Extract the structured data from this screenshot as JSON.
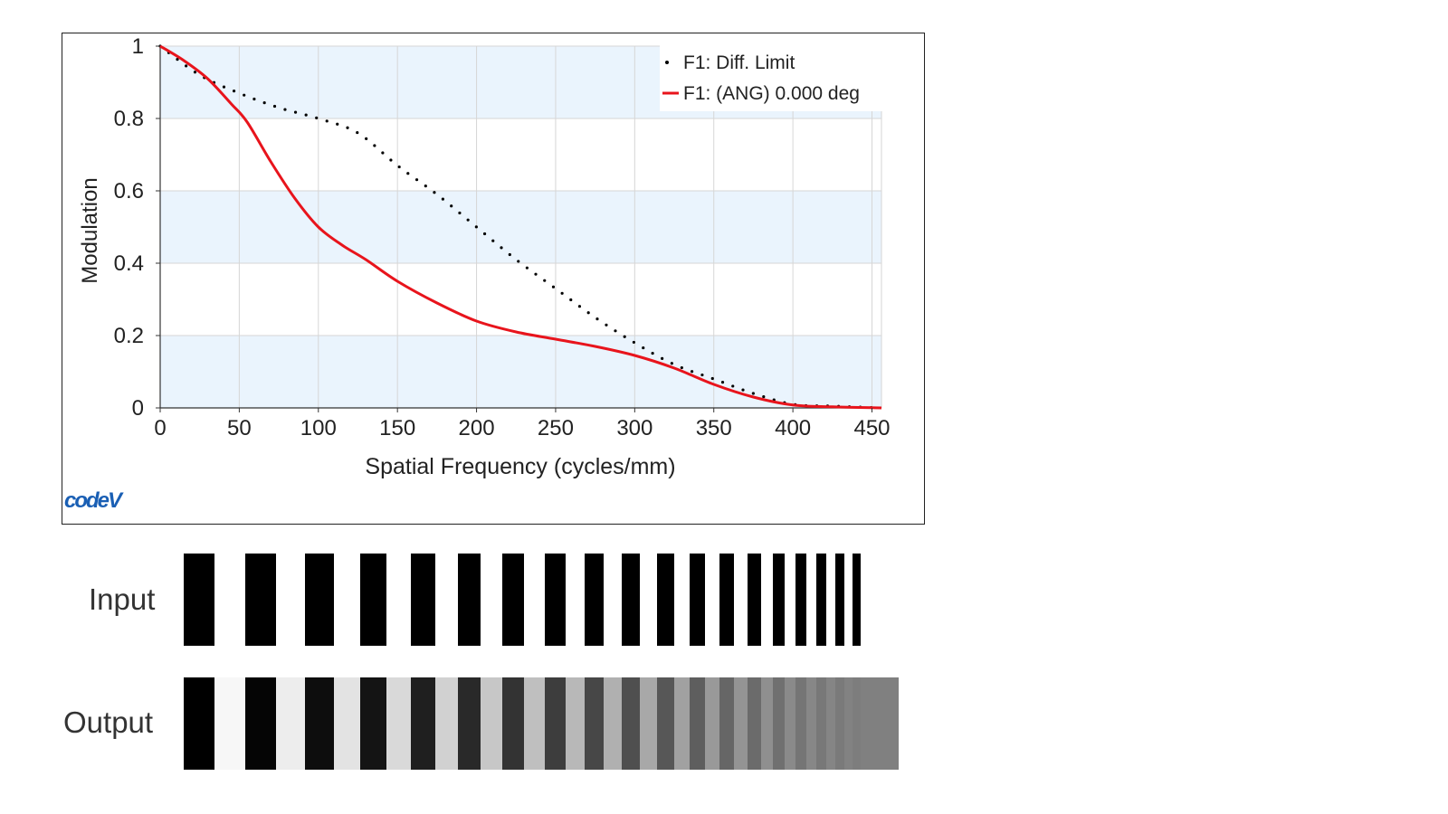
{
  "chart_data": {
    "type": "line",
    "title": "",
    "xlabel": "Spatial Frequency (cycles/mm)",
    "ylabel": "Modulation",
    "xlim": [
      0,
      456
    ],
    "ylim": [
      0,
      1
    ],
    "x_ticks": [
      0,
      50,
      100,
      150,
      200,
      250,
      300,
      350,
      400,
      450
    ],
    "y_ticks": [
      0,
      0.2,
      0.4,
      0.6,
      0.8,
      1
    ],
    "y_tick_labels": [
      "0",
      "0.2",
      "0.4",
      "0.6",
      "0.8",
      "1"
    ],
    "grid": true,
    "banded_background": true,
    "legend_position": "top-right",
    "series": [
      {
        "name": "F1: Diff. Limit",
        "style": "dotted",
        "color": "#000000",
        "x": [
          0,
          25,
          50,
          75,
          100,
          125,
          150,
          175,
          200,
          225,
          250,
          275,
          300,
          325,
          350,
          375,
          400,
          425,
          456
        ],
        "y": [
          1.0,
          0.92,
          0.87,
          0.83,
          0.8,
          0.76,
          0.67,
          0.59,
          0.5,
          0.41,
          0.33,
          0.25,
          0.18,
          0.12,
          0.08,
          0.04,
          0.01,
          0.005,
          0.0
        ]
      },
      {
        "name": "F1: (ANG) 0.000 deg",
        "style": "solid",
        "color": "#e8141c",
        "x": [
          0,
          15,
          30,
          45,
          55,
          70,
          85,
          100,
          115,
          130,
          150,
          175,
          200,
          225,
          250,
          275,
          300,
          325,
          350,
          375,
          400,
          425,
          456
        ],
        "y": [
          1.0,
          0.96,
          0.91,
          0.84,
          0.79,
          0.68,
          0.58,
          0.5,
          0.45,
          0.41,
          0.35,
          0.29,
          0.24,
          0.21,
          0.19,
          0.17,
          0.145,
          0.11,
          0.065,
          0.03,
          0.008,
          0.003,
          0.0
        ]
      }
    ]
  },
  "logo": {
    "text": "codeV",
    "color": "#1a5fb4"
  },
  "bars": {
    "input_label": "Input",
    "output_label": "Output",
    "widths": [
      34,
      34,
      32,
      29,
      27,
      25,
      24,
      23,
      21,
      20,
      19,
      17,
      16,
      15,
      13,
      12,
      11,
      10,
      9
    ],
    "output_bg_gray": [
      1.0,
      0.97,
      0.93,
      0.89,
      0.85,
      0.82,
      0.78,
      0.75,
      0.72,
      0.69,
      0.66,
      0.63,
      0.6,
      0.58,
      0.56,
      0.54,
      0.53,
      0.52,
      0.51
    ],
    "output_bar_gray": [
      0.0,
      0.02,
      0.05,
      0.08,
      0.12,
      0.16,
      0.2,
      0.24,
      0.28,
      0.31,
      0.34,
      0.37,
      0.4,
      0.42,
      0.44,
      0.46,
      0.47,
      0.48,
      0.49
    ]
  }
}
